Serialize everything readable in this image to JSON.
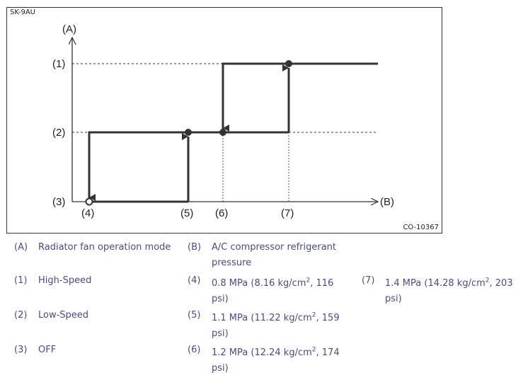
{
  "figure": {
    "code": "SK-9AU",
    "id": "CO-10367"
  },
  "diagram": {
    "y_axis_label": "(A)",
    "x_axis_label": "(B)",
    "y_levels": [
      "(1)",
      "(2)",
      "(3)"
    ],
    "x_points": [
      "(4)",
      "(5)",
      "(6)",
      "(7)"
    ]
  },
  "legend": {
    "A": {
      "key": "(A)",
      "text": "Radiator fan operation mode"
    },
    "B": {
      "key": "(B)",
      "text": "A/C compressor refrigerant pressure"
    },
    "1": {
      "key": "(1)",
      "text": "High-Speed"
    },
    "2": {
      "key": "(2)",
      "text": "Low-Speed"
    },
    "3": {
      "key": "(3)",
      "text": "OFF"
    },
    "4": {
      "key": "(4)",
      "pre": "0.8 MPa (8.16 kg/cm",
      "sup": "2",
      "post": ", 116",
      "line2": "psi)"
    },
    "5": {
      "key": "(5)",
      "pre": "1.1 MPa (11.22 kg/cm",
      "sup": "2",
      "post": ", 159",
      "line2": "psi)"
    },
    "6": {
      "key": "(6)",
      "pre": "1.2 MPa (12.24 kg/cm",
      "sup": "2",
      "post": ", 174",
      "line2": "psi)"
    },
    "7": {
      "key": "(7)",
      "pre": "1.4 MPa (14.28 kg/cm",
      "sup": "2",
      "post": ", 203",
      "line2": "psi)"
    }
  }
}
